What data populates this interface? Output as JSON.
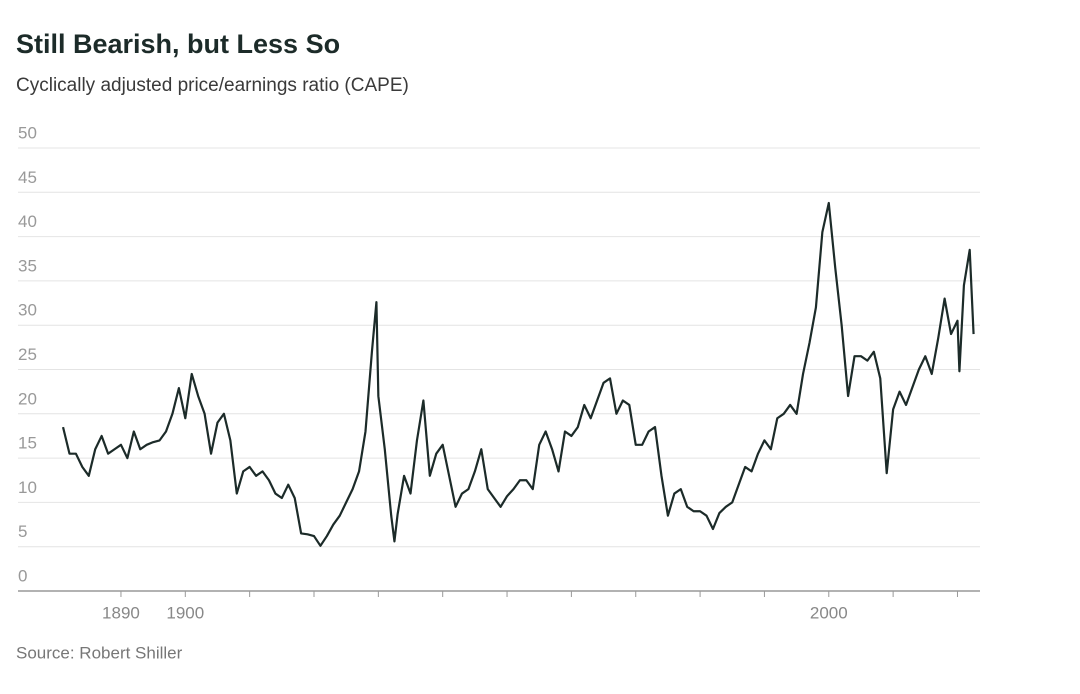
{
  "chart_data": {
    "type": "line",
    "title": "Still Bearish, but Less So",
    "subtitle": "Cyclically adjusted price/earnings ratio (CAPE)",
    "source": "Source: Robert Shiller",
    "x": [
      1881,
      1882,
      1883,
      1884,
      1885,
      1886,
      1887,
      1888,
      1889,
      1890,
      1891,
      1892,
      1893,
      1894,
      1895,
      1896,
      1897,
      1898,
      1899,
      1900,
      1901,
      1902,
      1903,
      1904,
      1905,
      1906,
      1907,
      1908,
      1909,
      1910,
      1911,
      1912,
      1913,
      1914,
      1915,
      1916,
      1917,
      1918,
      1919,
      1920,
      1921,
      1922,
      1923,
      1924,
      1925,
      1926,
      1927,
      1928,
      1929,
      1929.7,
      1930,
      1931,
      1932,
      1932.5,
      1933,
      1934,
      1935,
      1936,
      1937,
      1938,
      1939,
      1940,
      1941,
      1942,
      1943,
      1944,
      1945,
      1946,
      1947,
      1948,
      1949,
      1950,
      1951,
      1952,
      1953,
      1954,
      1955,
      1956,
      1957,
      1958,
      1959,
      1960,
      1961,
      1962,
      1963,
      1964,
      1965,
      1966,
      1967,
      1968,
      1969,
      1970,
      1971,
      1972,
      1973,
      1974,
      1975,
      1976,
      1977,
      1978,
      1979,
      1980,
      1981,
      1982,
      1983,
      1984,
      1985,
      1986,
      1987,
      1988,
      1989,
      1990,
      1991,
      1992,
      1993,
      1994,
      1995,
      1996,
      1997,
      1998,
      1999,
      2000,
      2001,
      2002,
      2003,
      2004,
      2005,
      2006,
      2007,
      2008,
      2009,
      2010,
      2011,
      2012,
      2013,
      2014,
      2015,
      2016,
      2017,
      2018,
      2019,
      2020,
      2020.3,
      2021,
      2021.9,
      2022.5
    ],
    "series": [
      {
        "name": "CAPE",
        "color": "#1c2b29",
        "values": [
          18.5,
          15.5,
          15.5,
          14,
          13,
          16,
          17.5,
          15.5,
          16,
          16.5,
          15,
          18,
          16,
          16.5,
          16.8,
          17,
          18,
          20,
          22.9,
          19.5,
          24.5,
          22,
          20,
          15.5,
          19,
          20,
          17,
          11,
          13.5,
          14,
          13,
          13.5,
          12.5,
          11,
          10.5,
          12,
          10.5,
          6.5,
          6.4,
          6.2,
          5.1,
          6.2,
          7.5,
          8.5,
          10,
          11.5,
          13.5,
          18,
          27,
          32.6,
          22,
          16,
          8.5,
          5.6,
          8.7,
          13,
          11,
          17,
          21.5,
          13,
          15.5,
          16.5,
          13,
          9.5,
          11,
          11.5,
          13.5,
          16,
          11.5,
          10.5,
          9.5,
          10.7,
          11.5,
          12.5,
          12.5,
          11.5,
          16.5,
          18,
          16,
          13.5,
          18,
          17.5,
          18.5,
          21,
          19.5,
          21.5,
          23.5,
          24,
          20,
          21.5,
          21,
          16.5,
          16.5,
          18,
          18.5,
          13,
          8.5,
          11,
          11.5,
          9.5,
          9,
          9,
          8.5,
          7,
          8.8,
          9.5,
          10,
          12,
          14,
          13.5,
          15.5,
          17,
          16,
          19.5,
          20,
          21,
          20,
          24.5,
          28,
          32,
          40.5,
          43.8,
          36.5,
          30,
          22,
          26.5,
          26.5,
          26,
          27,
          24,
          13.3,
          20.5,
          22.5,
          21,
          23,
          25,
          26.5,
          24.5,
          28.5,
          33,
          29,
          30.5,
          24.8,
          34.5,
          38.5,
          29
        ]
      }
    ],
    "xlim": [
      1874,
      2023.5
    ],
    "xticks": [
      1890,
      1900,
      2000
    ],
    "minor_xticks": [
      1910,
      1920,
      1930,
      1940,
      1950,
      1960,
      1970,
      1980,
      1990,
      2010,
      2020
    ],
    "ylim": [
      0,
      50
    ],
    "yticks": [
      0,
      5,
      10,
      15,
      20,
      25,
      30,
      35,
      40,
      45,
      50
    ],
    "grid": true
  }
}
